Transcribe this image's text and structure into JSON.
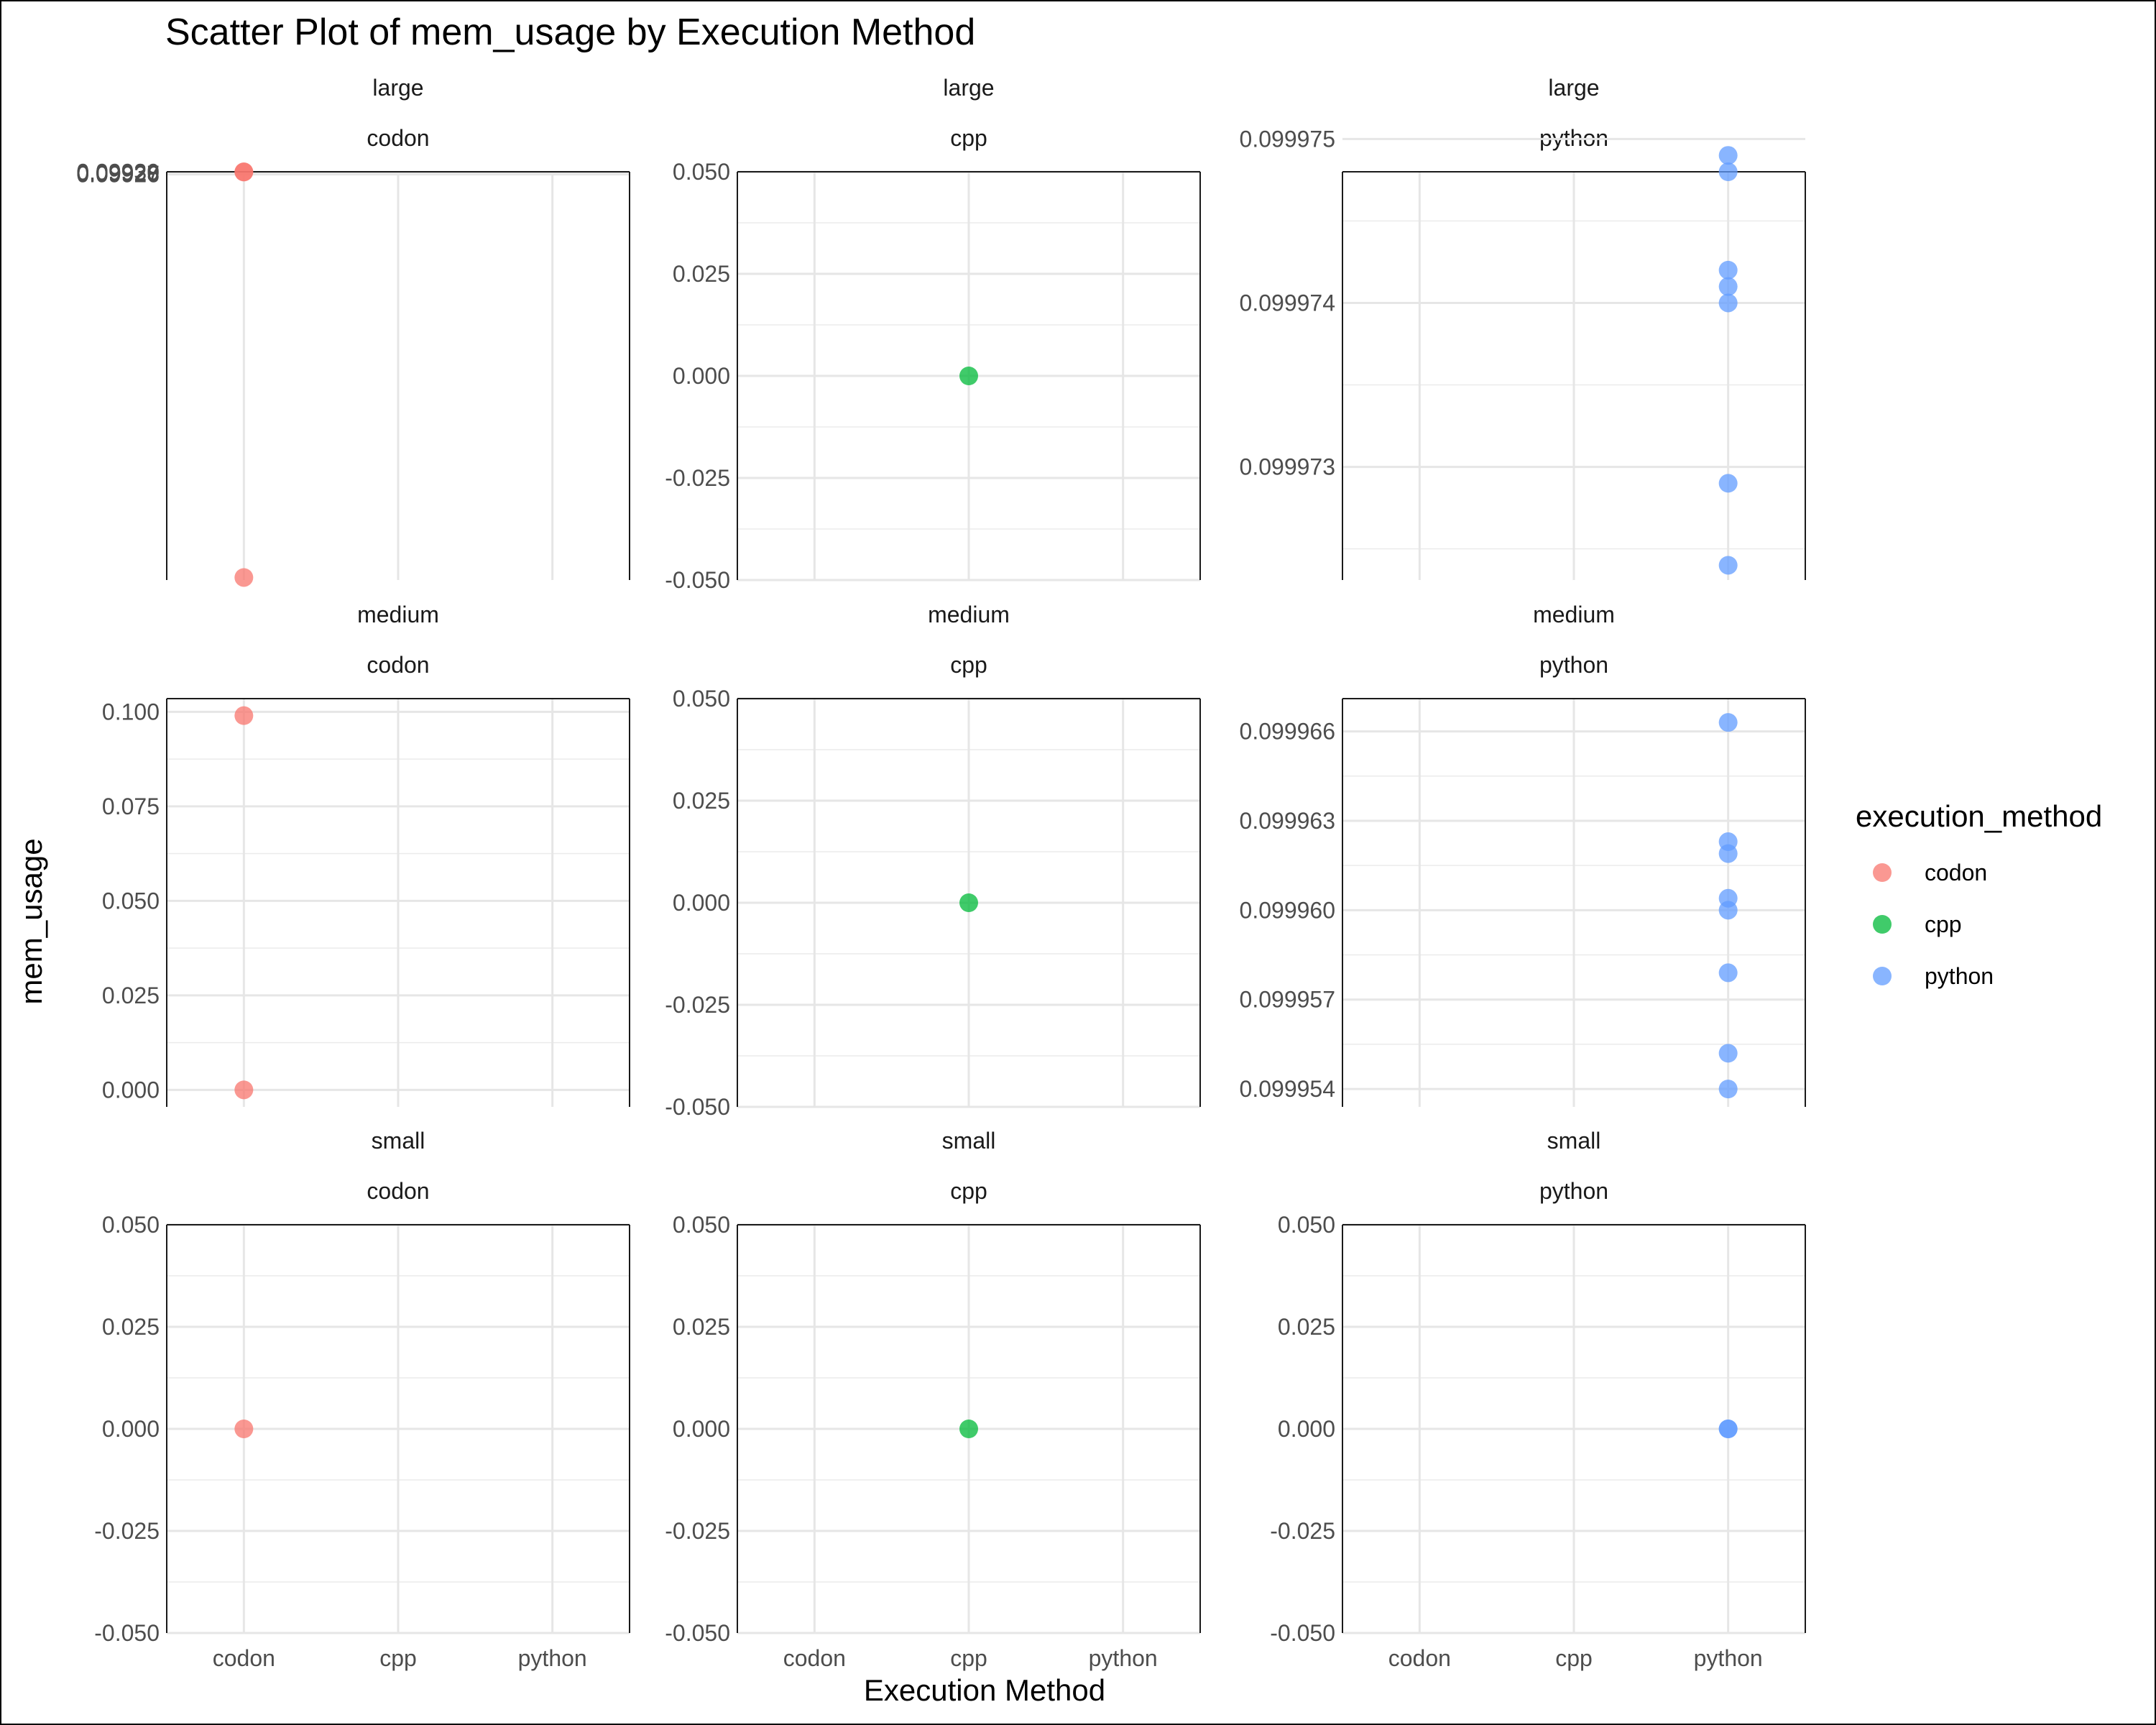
{
  "chart_data": {
    "type": "scatter",
    "title": "Scatter Plot of mem_usage by Execution Method",
    "xlabel": "Execution Method",
    "ylabel": "mem_usage",
    "categories": [
      "codon",
      "cpp",
      "python"
    ],
    "legend": {
      "title": "execution_method",
      "placement": "right",
      "entries": [
        {
          "name": "codon",
          "color": "#F8766D"
        },
        {
          "name": "cpp",
          "color": "#00BA38"
        },
        {
          "name": "python",
          "color": "#619CFF"
        }
      ]
    },
    "facets": [
      {
        "size": "large",
        "method": "codon",
        "color": "#F8766D",
        "ylim": [
          0.092514,
          0.099303
        ],
        "yticks": [
          "0.09926",
          "0.09927",
          "0.09928",
          "0.09929",
          "0.09930"
        ],
        "ytick_values": [
          0.09926,
          0.09927,
          0.09928,
          0.09929,
          0.0993
        ],
        "points": [
          {
            "x": "codon",
            "y": 0.099303
          },
          {
            "x": "codon",
            "y": 0.099298
          },
          {
            "x": "codon",
            "y": 0.092556
          }
        ]
      },
      {
        "size": "large",
        "method": "cpp",
        "color": "#00BA38",
        "ylim": [
          -0.05,
          0.05
        ],
        "yticks": [
          "-0.050",
          "-0.025",
          "0.000",
          "0.025",
          "0.050"
        ],
        "ytick_values": [
          -0.05,
          -0.025,
          0,
          0.025,
          0.05
        ],
        "points": [
          {
            "x": "cpp",
            "y": 0.0
          }
        ]
      },
      {
        "size": "large",
        "method": "python",
        "color": "#619CFF",
        "ylim": [
          0.09997231,
          0.0999748
        ],
        "yticks": [
          "0.099973",
          "0.099974",
          "0.099975"
        ],
        "ytick_values": [
          0.099973,
          0.099974,
          0.099975
        ],
        "points": [
          {
            "x": "python",
            "y": 0.0999749
          },
          {
            "x": "python",
            "y": 0.0999748
          },
          {
            "x": "python",
            "y": 0.0999742
          },
          {
            "x": "python",
            "y": 0.0999741
          },
          {
            "x": "python",
            "y": 0.099974
          },
          {
            "x": "python",
            "y": 0.0999729
          },
          {
            "x": "python",
            "y": 0.0999724
          }
        ]
      },
      {
        "size": "medium",
        "method": "codon",
        "color": "#F8766D",
        "ylim": [
          -0.0045,
          0.1035
        ],
        "yticks": [
          "0.000",
          "0.025",
          "0.050",
          "0.075",
          "0.100"
        ],
        "ytick_values": [
          0,
          0.025,
          0.05,
          0.075,
          0.1
        ],
        "points": [
          {
            "x": "codon",
            "y": 0.099
          },
          {
            "x": "codon",
            "y": 0.0
          }
        ]
      },
      {
        "size": "medium",
        "method": "cpp",
        "color": "#00BA38",
        "ylim": [
          -0.05,
          0.05
        ],
        "yticks": [
          "-0.050",
          "-0.025",
          "0.000",
          "0.025",
          "0.050"
        ],
        "ytick_values": [
          -0.05,
          -0.025,
          0,
          0.025,
          0.05
        ],
        "points": [
          {
            "x": "cpp",
            "y": 0.0
          }
        ]
      },
      {
        "size": "medium",
        "method": "python",
        "color": "#619CFF",
        "ylim": [
          0.0999534,
          0.0999671
        ],
        "yticks": [
          "0.099954",
          "0.099957",
          "0.099960",
          "0.099963",
          "0.099966"
        ],
        "ytick_values": [
          0.099954,
          0.099957,
          0.09996,
          0.099963,
          0.099966
        ],
        "points": [
          {
            "x": "python",
            "y": 0.0999663
          },
          {
            "x": "python",
            "y": 0.0999623
          },
          {
            "x": "python",
            "y": 0.0999619
          },
          {
            "x": "python",
            "y": 0.0999604
          },
          {
            "x": "python",
            "y": 0.09996
          },
          {
            "x": "python",
            "y": 0.0999579
          },
          {
            "x": "python",
            "y": 0.0999552
          },
          {
            "x": "python",
            "y": 0.099954
          }
        ]
      },
      {
        "size": "small",
        "method": "codon",
        "color": "#F8766D",
        "ylim": [
          -0.05,
          0.05
        ],
        "yticks": [
          "-0.050",
          "-0.025",
          "0.000",
          "0.025",
          "0.050"
        ],
        "ytick_values": [
          -0.05,
          -0.025,
          0,
          0.025,
          0.05
        ],
        "points": [
          {
            "x": "codon",
            "y": 0.0
          }
        ]
      },
      {
        "size": "small",
        "method": "cpp",
        "color": "#00BA38",
        "ylim": [
          -0.05,
          0.05
        ],
        "yticks": [
          "-0.050",
          "-0.025",
          "0.000",
          "0.025",
          "0.050"
        ],
        "ytick_values": [
          -0.05,
          -0.025,
          0,
          0.025,
          0.05
        ],
        "points": [
          {
            "x": "cpp",
            "y": 0.0
          }
        ]
      },
      {
        "size": "small",
        "method": "python",
        "color": "#619CFF",
        "ylim": [
          -0.05,
          0.05
        ],
        "yticks": [
          "-0.050",
          "-0.025",
          "0.000",
          "0.025",
          "0.050"
        ],
        "ytick_values": [
          -0.05,
          -0.025,
          0,
          0.025,
          0.05
        ],
        "points": [
          {
            "x": "python",
            "y": 0.0
          },
          {
            "x": "python",
            "y": 0.0
          }
        ]
      }
    ]
  }
}
